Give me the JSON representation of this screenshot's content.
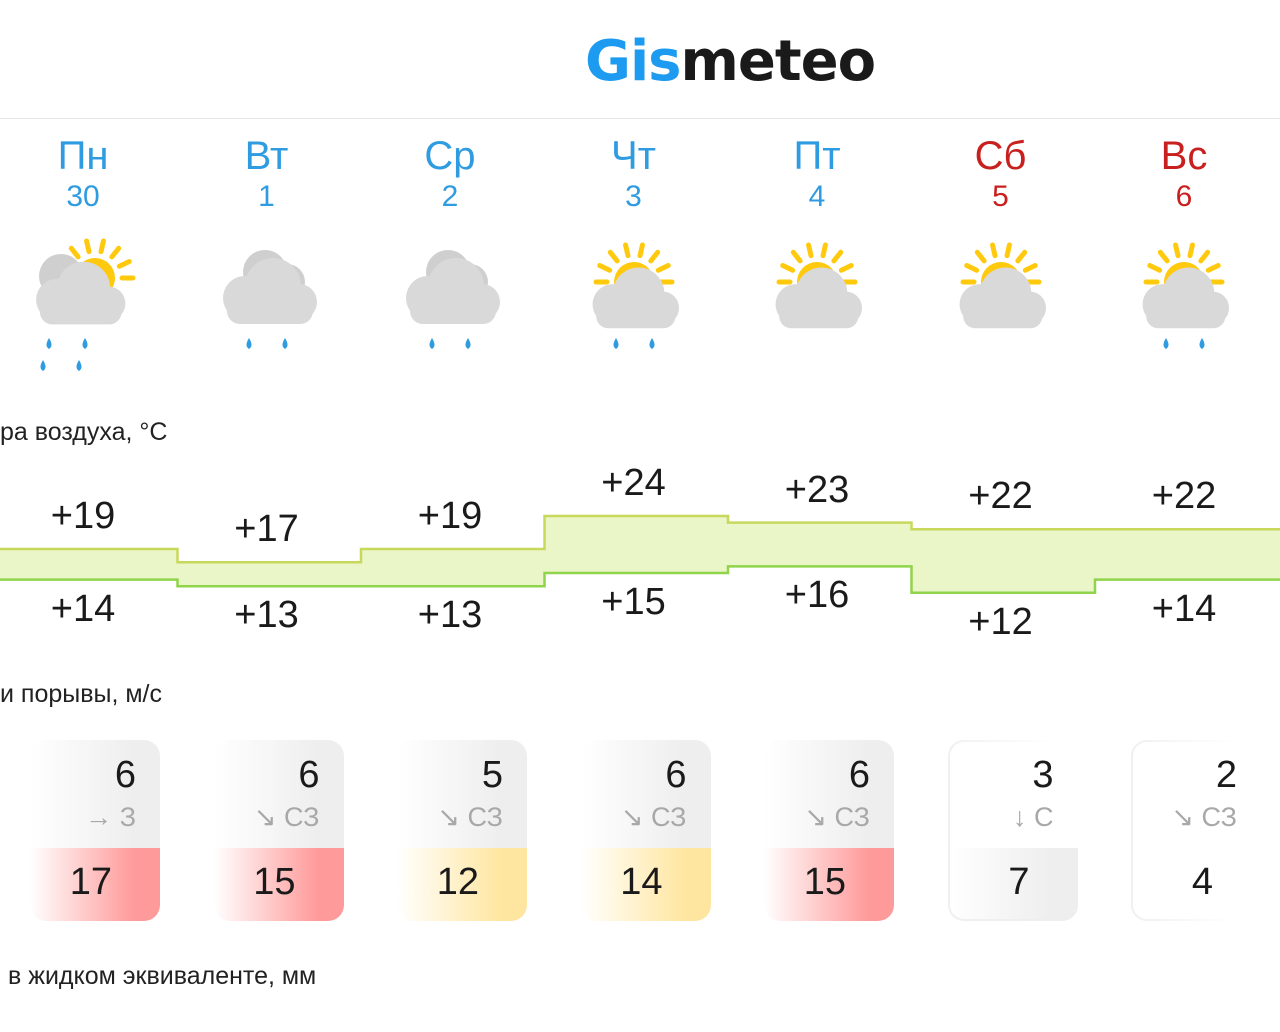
{
  "header": {
    "logo_part1": "Gis",
    "logo_part2": "meteo"
  },
  "days": [
    {
      "name": "Пн",
      "date": "30",
      "weekend": false,
      "icon": "partly-cloudy-rain-icon"
    },
    {
      "name": "Вт",
      "date": "1",
      "weekend": false,
      "icon": "cloudy-rain-icon"
    },
    {
      "name": "Ср",
      "date": "2",
      "weekend": false,
      "icon": "cloudy-rain-icon"
    },
    {
      "name": "Чт",
      "date": "3",
      "weekend": false,
      "icon": "sun-cloud-rain-icon"
    },
    {
      "name": "Пт",
      "date": "4",
      "weekend": false,
      "icon": "sun-cloud-icon"
    },
    {
      "name": "Сб",
      "date": "5",
      "weekend": true,
      "icon": "sun-cloud-icon"
    },
    {
      "name": "Вс",
      "date": "6",
      "weekend": true,
      "icon": "sun-cloud-rain-icon"
    }
  ],
  "sections": {
    "temperature": "ра воздуха, °C",
    "wind": "и порывы, м/с",
    "precip": "в жидком эквиваленте, мм"
  },
  "temperature": {
    "max": [
      "+19",
      "+17",
      "+19",
      "+24",
      "+23",
      "+22",
      "+22"
    ],
    "min": [
      "+14",
      "+13",
      "+13",
      "+15",
      "+16",
      "+12",
      "+14"
    ],
    "max_values": [
      19,
      17,
      19,
      24,
      23,
      22,
      22
    ],
    "min_values": [
      14,
      13,
      13,
      15,
      16,
      12,
      14
    ]
  },
  "wind": {
    "speed": [
      "6",
      "6",
      "5",
      "6",
      "6",
      "3",
      "2"
    ],
    "direction": [
      "→ З",
      "↘ СЗ",
      "↘ СЗ",
      "↘ СЗ",
      "↘ СЗ",
      "↓ С",
      "↘ СЗ"
    ],
    "gust": [
      "17",
      "15",
      "12",
      "14",
      "15",
      "7",
      "4"
    ],
    "gust_colors": [
      "#ff9a9a",
      "#ff9a9a",
      "#ffe6a0",
      "#ffe6a0",
      "#ff9a9a",
      "#eeeeee",
      "#ffffff"
    ],
    "top_colors": [
      "#eeeeee",
      "#eeeeee",
      "#eeeeee",
      "#eeeeee",
      "#eeeeee",
      "#ffffff",
      "#ffffff"
    ]
  },
  "colors": {
    "accent": "#2f9be0",
    "weekend": "#c8201e",
    "temp_fill": "#eaf5c8",
    "temp_line_hi": "#c8d85a",
    "temp_line_lo": "#8fd44a"
  }
}
